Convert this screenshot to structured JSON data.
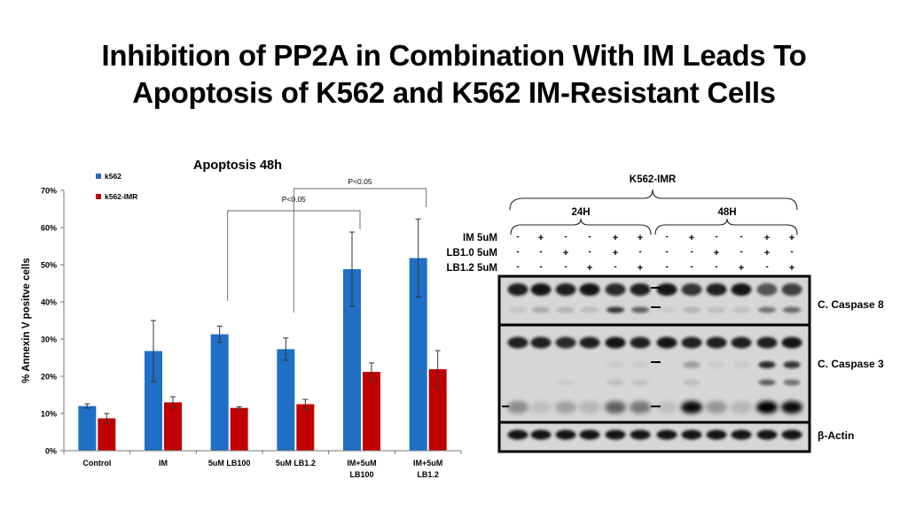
{
  "slide": {
    "title_line1": "Inhibition of PP2A in Combination With IM Leads To",
    "title_line2": "Apoptosis of K562 and K562 IM-Resistant Cells"
  },
  "chart_data": {
    "type": "bar",
    "title": "Apoptosis 48h",
    "ylabel": "% Annexin V positve cells",
    "xlabel": "",
    "categories": [
      "Control",
      "IM",
      "5uM LB100",
      "5uM LB1.2",
      "IM+5uM\nLB100",
      "IM+5uM\nLB1.2"
    ],
    "series": [
      {
        "name": "k562",
        "color": "#1f6fc5",
        "values": [
          12,
          26.8,
          31.3,
          27.3,
          48.8,
          51.8
        ],
        "errors": [
          0.6,
          8.2,
          2.2,
          3.0,
          10.0,
          10.5
        ]
      },
      {
        "name": "k562-IMR",
        "color": "#c00000",
        "values": [
          8.7,
          13,
          11.5,
          12.5,
          21.2,
          21.9
        ],
        "errors": [
          1.3,
          1.5,
          0.3,
          1.3,
          2.4,
          5.0
        ]
      }
    ],
    "ylim": [
      0,
      70
    ],
    "yticks": [
      "0%",
      "10%",
      "20%",
      "30%",
      "40%",
      "50%",
      "60%",
      "70%"
    ],
    "legend_position": "top-left",
    "grid": false,
    "annotations": [
      {
        "text": "P<0.05",
        "from_category": 2,
        "to_category": 4
      },
      {
        "text": "P<0.05",
        "from_category": 3,
        "to_category": 5
      }
    ]
  },
  "blot": {
    "cell_line": "K562-IMR",
    "timepoints": [
      "24H",
      "48H"
    ],
    "treatments": [
      {
        "label": "IM 5uM",
        "signs": [
          "-",
          "+",
          "-",
          "-",
          "+",
          "+",
          "-",
          "+",
          "-",
          "-",
          "+",
          "+"
        ]
      },
      {
        "label": "LB1.0 5uM",
        "signs": [
          "-",
          "-",
          "+",
          "-",
          "+",
          "-",
          "-",
          "-",
          "+",
          "-",
          "+",
          "-"
        ]
      },
      {
        "label": "LB1.2 5uM",
        "signs": [
          "-",
          "-",
          "-",
          "+",
          "-",
          "+",
          "-",
          "-",
          "-",
          "+",
          "-",
          "+"
        ]
      }
    ],
    "panels": [
      {
        "label": "C. Caspase 8"
      },
      {
        "label": "C. Caspase 3"
      },
      {
        "label": "β-Actin"
      }
    ]
  }
}
